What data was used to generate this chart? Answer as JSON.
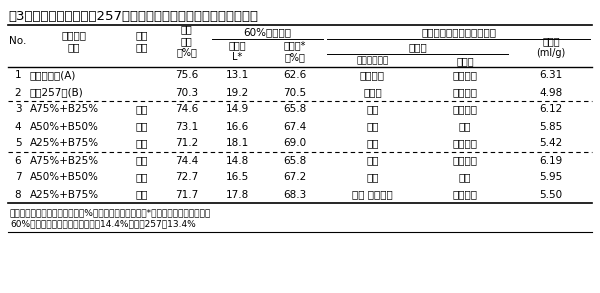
{
  "title": "表3　ハルユタカと北海257号のブレンド小麦粉の性状と製パン性",
  "header_row1": [
    "No.",
    "ブレンド\n方法",
    "加水\n方法",
    "製粉\n歩留\n（%）",
    "60%粉の性状",
    "",
    "製パン性（ストレート法）",
    "",
    "",
    ""
  ],
  "header_row2": [
    "",
    "",
    "",
    "",
    "黄色味\nL*",
    "吸水率*\n（%）",
    "作業性",
    "",
    "比容積\n(ml/g)",
    ""
  ],
  "header_row3": [
    "",
    "",
    "",
    "",
    "",
    "",
    "ミキシング時",
    "成型時",
    "",
    ""
  ],
  "col_headers_line1": [
    "No.",
    "ブレンド",
    "加水",
    "製粉",
    "60%粉の性状",
    "製パン性（ストレート法）"
  ],
  "rows": [
    [
      "1",
      "ハルユタカ(A)",
      "",
      "75.6",
      "13.1",
      "62.6",
      "べとっく",
      "やわらか",
      "6.31"
    ],
    [
      "2",
      "北海257号(B)",
      "",
      "70.3",
      "19.2",
      "70.5",
      "もろい",
      "やや硬め",
      "4.98"
    ],
    [
      "3",
      "A75%+B25%",
      "混合",
      "74.6",
      "14.9",
      "65.8",
      "良い",
      "やわらか",
      "6.12"
    ],
    [
      "4",
      "A50%+B50%",
      "混合",
      "73.1",
      "16.6",
      "67.4",
      "良い",
      "良い",
      "5.85"
    ],
    [
      "5",
      "A25%+B75%",
      "混合",
      "71.2",
      "18.1",
      "69.0",
      "良い",
      "やや硬め",
      "5.42"
    ],
    [
      "6",
      "A75%+B25%",
      "個別",
      "74.4",
      "14.8",
      "65.8",
      "良い",
      "やわらか",
      "6.19"
    ],
    [
      "7",
      "A50%+B50%",
      "個別",
      "72.7",
      "16.5",
      "67.2",
      "良い",
      "良い",
      "5.95"
    ],
    [
      "8",
      "A25%+B75%",
      "個別",
      "71.7",
      "17.8",
      "68.3",
      "やや べとっく",
      "やや硬め",
      "5.50"
    ]
  ],
  "footnote1": "注）製粉条件　加水目標：１６%　篩：硬質用を使用　*ファリノグラフの吸水率",
  "footnote2": "60%粉の蛋白質含量：ハルユタカ14.4%、北海257号13.4%",
  "bg_color": "#ffffff",
  "text_color": "#000000",
  "font_size": 7.5,
  "title_font_size": 9.5
}
